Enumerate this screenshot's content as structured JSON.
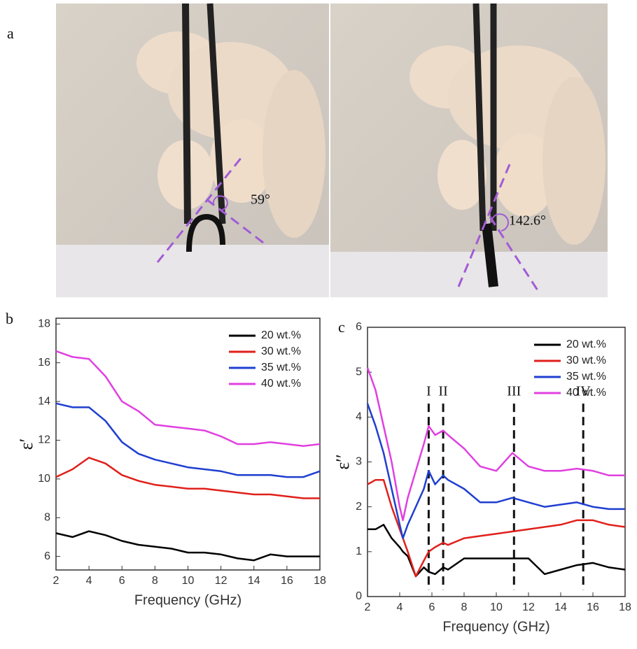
{
  "panel_a": {
    "label": "a",
    "angles": [
      "59°",
      "142.6°"
    ]
  },
  "chart_data": [
    {
      "type": "line",
      "panel_label": "b",
      "xlabel": "Frequency (GHz)",
      "ylabel": "ε′",
      "x": [
        2,
        3,
        4,
        5,
        6,
        7,
        8,
        9,
        10,
        11,
        12,
        13,
        14,
        15,
        16,
        17,
        18
      ],
      "xlim": [
        2,
        18
      ],
      "xticks": [
        2,
        4,
        6,
        8,
        10,
        12,
        14,
        16,
        18
      ],
      "ylim": [
        5.3,
        18.3
      ],
      "yticks": [
        6,
        8,
        10,
        12,
        14,
        16,
        18
      ],
      "legend": "upper-right",
      "series": [
        {
          "name": "20 wt.%",
          "color": "#000000",
          "values": [
            7.2,
            7.0,
            7.3,
            7.1,
            6.8,
            6.6,
            6.5,
            6.4,
            6.2,
            6.2,
            6.1,
            5.9,
            5.8,
            6.1,
            6.0,
            6.0,
            6.0
          ]
        },
        {
          "name": "30 wt.%",
          "color": "#e0201b",
          "values": [
            10.1,
            10.5,
            11.1,
            10.8,
            10.2,
            9.9,
            9.7,
            9.6,
            9.5,
            9.5,
            9.4,
            9.3,
            9.2,
            9.2,
            9.1,
            9.0,
            9.0
          ]
        },
        {
          "name": "35 wt.%",
          "color": "#1f3fd0",
          "values": [
            13.9,
            13.7,
            13.7,
            13.0,
            11.9,
            11.3,
            11.0,
            10.8,
            10.6,
            10.5,
            10.4,
            10.2,
            10.2,
            10.2,
            10.1,
            10.1,
            10.4
          ]
        },
        {
          "name": "40 wt.%",
          "color": "#e040e0",
          "values": [
            16.6,
            16.3,
            16.2,
            15.3,
            14.0,
            13.5,
            12.8,
            12.7,
            12.6,
            12.5,
            12.2,
            11.8,
            11.8,
            11.9,
            11.8,
            11.7,
            11.8
          ]
        }
      ]
    },
    {
      "type": "line",
      "panel_label": "c",
      "xlabel": "Frequency (GHz)",
      "ylabel": "ε′′",
      "x": [
        2,
        2.5,
        3,
        3.5,
        4,
        4.2,
        4.5,
        5,
        5.5,
        5.8,
        6.2,
        6.7,
        7,
        8,
        9,
        10,
        11,
        12,
        13,
        14,
        15,
        16,
        17,
        18
      ],
      "xlim": [
        2,
        18
      ],
      "xticks": [
        2,
        4,
        6,
        8,
        10,
        12,
        14,
        16,
        18
      ],
      "ylim": [
        0,
        6
      ],
      "yticks": [
        0,
        1,
        2,
        3,
        4,
        5,
        6
      ],
      "legend": "upper-right",
      "series": [
        {
          "name": "20 wt.%",
          "color": "#000000",
          "values": [
            1.5,
            1.5,
            1.6,
            1.3,
            1.1,
            1.0,
            0.9,
            0.45,
            0.65,
            0.55,
            0.5,
            0.65,
            0.6,
            0.85,
            0.85,
            0.85,
            0.85,
            0.85,
            0.5,
            0.6,
            0.7,
            0.75,
            0.65,
            0.6
          ]
        },
        {
          "name": "30 wt.%",
          "color": "#e0201b",
          "values": [
            2.5,
            2.6,
            2.6,
            2.0,
            1.5,
            1.3,
            1.0,
            0.45,
            0.8,
            1.0,
            1.1,
            1.2,
            1.15,
            1.3,
            1.35,
            1.4,
            1.45,
            1.5,
            1.55,
            1.6,
            1.7,
            1.7,
            1.6,
            1.55
          ]
        },
        {
          "name": "35 wt.%",
          "color": "#1f3fd0",
          "values": [
            4.3,
            3.8,
            3.2,
            2.4,
            1.6,
            1.3,
            1.6,
            2.0,
            2.4,
            2.8,
            2.5,
            2.7,
            2.6,
            2.4,
            2.1,
            2.1,
            2.2,
            2.1,
            2.0,
            2.05,
            2.1,
            2.0,
            1.95,
            1.95
          ]
        },
        {
          "name": "40 wt.%",
          "color": "#e040e0",
          "values": [
            5.1,
            4.6,
            3.8,
            3.0,
            2.0,
            1.7,
            2.2,
            2.8,
            3.4,
            3.8,
            3.6,
            3.7,
            3.6,
            3.3,
            2.9,
            2.8,
            3.2,
            2.9,
            2.8,
            2.8,
            2.85,
            2.8,
            2.7,
            2.7
          ]
        }
      ],
      "annotations": [
        {
          "label": "I",
          "x": 5.8
        },
        {
          "label": "II",
          "x": 6.7
        },
        {
          "label": "III",
          "x": 11.1
        },
        {
          "label": "IV",
          "x": 15.4
        }
      ]
    }
  ]
}
